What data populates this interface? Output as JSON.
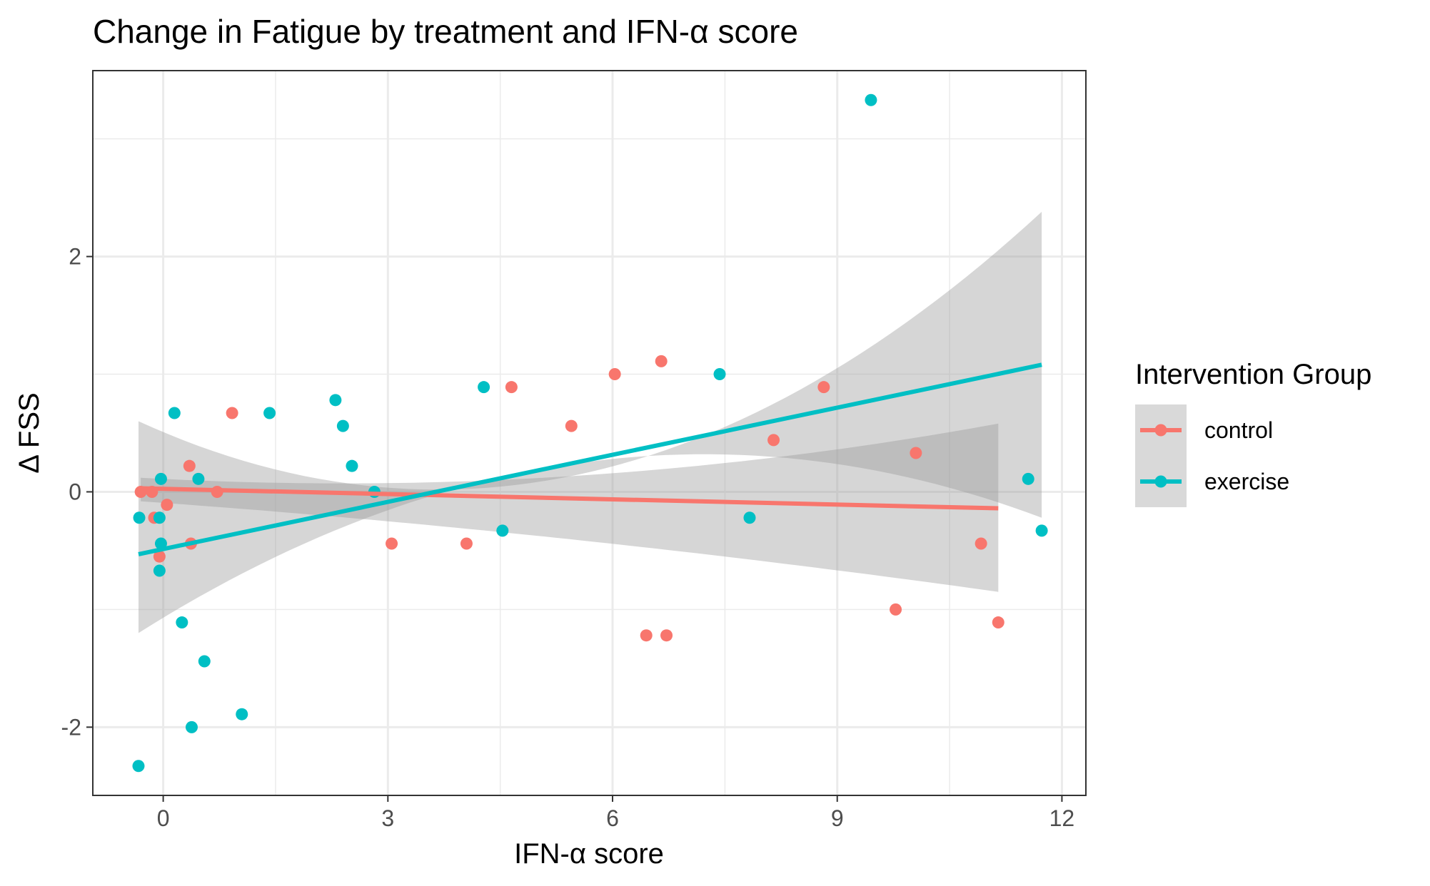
{
  "chart_data": {
    "type": "scatter",
    "title": "Change in Fatigue by treatment and IFN-α score",
    "xlabel": "IFN-α score",
    "ylabel": "Δ FSS",
    "xlim": [
      -0.94,
      12.32
    ],
    "ylim": [
      -2.58,
      3.58
    ],
    "x_ticks": [
      0,
      3,
      6,
      9,
      12
    ],
    "y_ticks": [
      -2,
      0,
      2
    ],
    "x_tick_labels": [
      "0",
      "3",
      "6",
      "9",
      "12"
    ],
    "y_tick_labels": [
      "-2",
      "0",
      "2"
    ],
    "grid": true,
    "legend": {
      "title": "Intervention Group",
      "position": "right",
      "entries": [
        "control",
        "exercise"
      ]
    },
    "colors": {
      "control": "#F8766D",
      "exercise": "#00BFC4",
      "ribbon": "#999999",
      "grid": "#EBEBEB",
      "panel_border": "#333333"
    },
    "series": [
      {
        "name": "control",
        "points": [
          [
            -0.3,
            0.0
          ],
          [
            -0.15,
            0.0
          ],
          [
            -0.12,
            -0.22
          ],
          [
            -0.05,
            -0.55
          ],
          [
            0.05,
            -0.11
          ],
          [
            0.35,
            0.22
          ],
          [
            0.37,
            -0.44
          ],
          [
            0.72,
            0.0
          ],
          [
            0.92,
            0.67
          ],
          [
            3.05,
            -0.44
          ],
          [
            4.05,
            -0.44
          ],
          [
            4.65,
            0.89
          ],
          [
            5.45,
            0.56
          ],
          [
            6.03,
            1.0
          ],
          [
            6.45,
            -1.22
          ],
          [
            6.65,
            1.11
          ],
          [
            6.72,
            -1.22
          ],
          [
            8.15,
            0.44
          ],
          [
            8.82,
            0.89
          ],
          [
            9.78,
            -1.0
          ],
          [
            10.05,
            0.33
          ],
          [
            10.92,
            -0.44
          ],
          [
            11.15,
            -1.11
          ]
        ],
        "fit": {
          "x": [
            -0.3,
            11.15
          ],
          "y": [
            0.03,
            -0.14
          ]
        },
        "ci_upper": {
          "x": [
            -0.3,
            3.5,
            11.15
          ],
          "y": [
            0.12,
            0.08,
            0.58
          ]
        },
        "ci_lower": {
          "x": [
            -0.3,
            3.5,
            11.15
          ],
          "y": [
            -0.08,
            -0.28,
            -0.85
          ]
        }
      },
      {
        "name": "exercise",
        "points": [
          [
            -0.32,
            -0.22
          ],
          [
            -0.33,
            -2.33
          ],
          [
            -0.05,
            -0.22
          ],
          [
            -0.05,
            -0.67
          ],
          [
            -0.03,
            0.11
          ],
          [
            -0.03,
            -0.44
          ],
          [
            0.15,
            0.67
          ],
          [
            0.25,
            -1.11
          ],
          [
            0.38,
            -2.0
          ],
          [
            0.47,
            0.11
          ],
          [
            0.55,
            -1.44
          ],
          [
            1.05,
            -1.89
          ],
          [
            1.42,
            0.67
          ],
          [
            2.3,
            0.78
          ],
          [
            2.4,
            0.56
          ],
          [
            2.52,
            0.22
          ],
          [
            2.82,
            0.0
          ],
          [
            4.28,
            0.89
          ],
          [
            4.53,
            -0.33
          ],
          [
            7.43,
            1.0
          ],
          [
            7.83,
            -0.22
          ],
          [
            9.45,
            3.33
          ],
          [
            11.55,
            0.11
          ],
          [
            11.73,
            -0.33
          ]
        ],
        "fit": {
          "x": [
            -0.33,
            11.73
          ],
          "y": [
            -0.53,
            1.08
          ]
        },
        "ci_upper": {
          "x": [
            -0.33,
            3.5,
            11.73
          ],
          "y": [
            0.6,
            0.02,
            2.38
          ]
        },
        "ci_lower": {
          "x": [
            -0.33,
            3.5,
            11.73
          ],
          "y": [
            -1.2,
            -0.05,
            -0.22
          ]
        }
      }
    ]
  }
}
